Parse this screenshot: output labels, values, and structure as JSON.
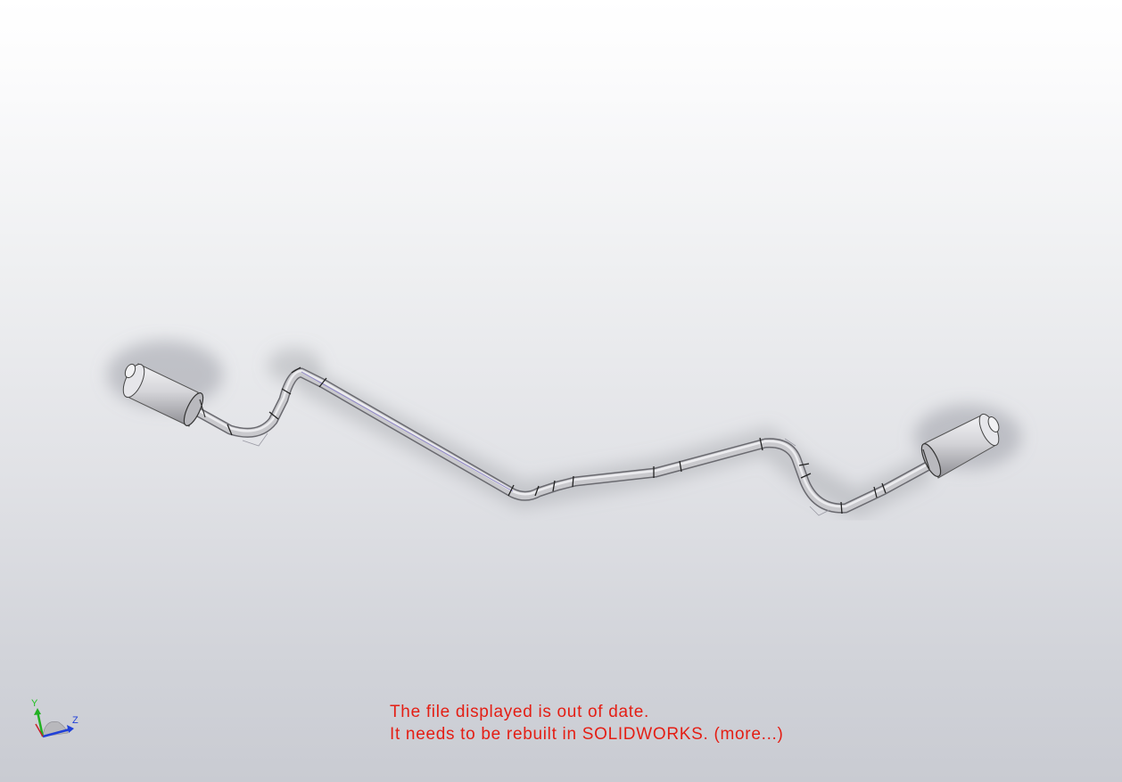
{
  "viewport": {
    "model": "exhaust-pipe-assembly"
  },
  "triad": {
    "y_label": "Y",
    "z_label": "Z"
  },
  "warning": {
    "line1": "The file displayed is out of date.",
    "line2": "It needs to be rebuilt in SOLIDWORKS. (more...)",
    "color": "#e41e14"
  }
}
